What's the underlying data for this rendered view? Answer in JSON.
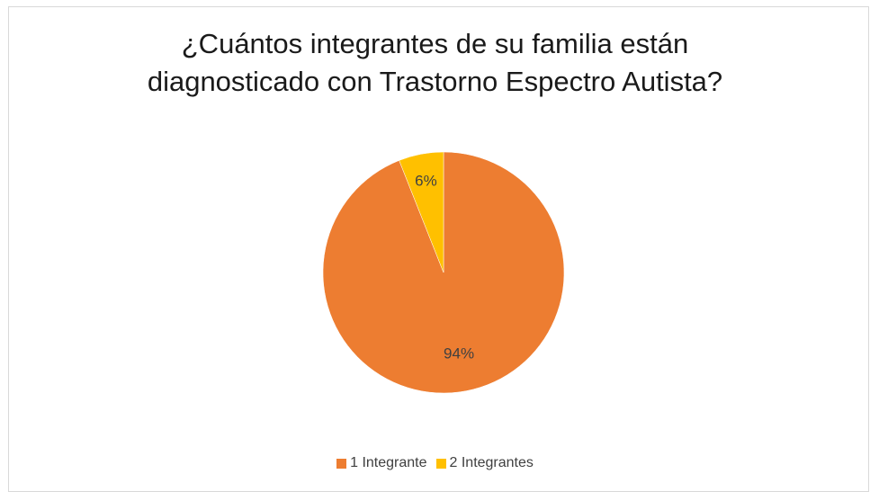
{
  "chart_data": {
    "type": "pie",
    "title_lines": [
      "¿Cuántos integrantes de su familia están",
      "diagnosticado con Trastorno Espectro Autista?"
    ],
    "categories": [
      "1 Integrante",
      "2 Integrantes"
    ],
    "values": [
      94,
      6
    ],
    "data_labels": [
      "94%",
      "6%"
    ],
    "colors": [
      "#ED7D31",
      "#FFC000"
    ],
    "legend_position": "bottom"
  }
}
